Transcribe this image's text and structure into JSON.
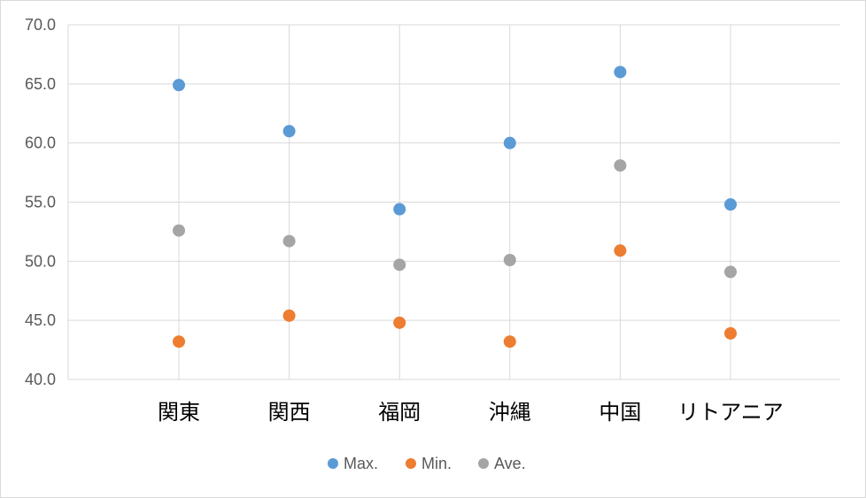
{
  "chart_data": {
    "type": "scatter",
    "categories": [
      "関東",
      "関西",
      "福岡",
      "沖縄",
      "中国",
      "リトアニア"
    ],
    "series": [
      {
        "name": "Max.",
        "color": "#5b9bd5",
        "values": [
          64.9,
          61.0,
          54.4,
          60.0,
          66.0,
          54.8
        ]
      },
      {
        "name": "Min.",
        "color": "#ed7d31",
        "values": [
          43.2,
          45.4,
          44.8,
          43.2,
          50.9,
          43.9
        ]
      },
      {
        "name": "Ave.",
        "color": "#a5a5a5",
        "values": [
          52.6,
          51.7,
          49.7,
          50.1,
          58.1,
          49.1
        ]
      }
    ],
    "ylim": [
      40.0,
      70.0
    ],
    "yticks": [
      "40.0",
      "45.0",
      "50.0",
      "55.0",
      "60.0",
      "65.0",
      "70.0"
    ],
    "grid": true,
    "legend_position": "bottom",
    "title": "",
    "xlabel": "",
    "ylabel": ""
  }
}
